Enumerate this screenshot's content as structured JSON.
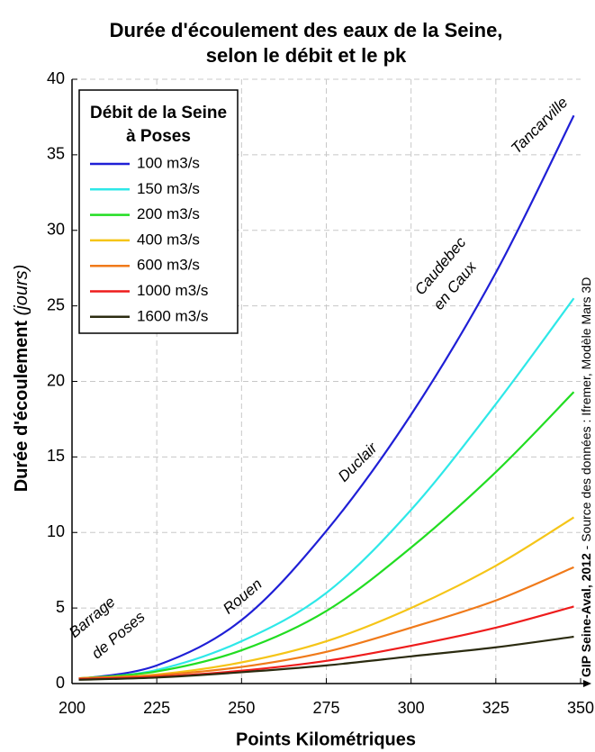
{
  "chart_data": {
    "type": "line",
    "title": [
      "Durée d'écoulement des eaux de la Seine,",
      "selon le débit et le pk"
    ],
    "x_label": "Points Kilométriques",
    "y_label": [
      "Durée d'écoulement ",
      "(jours)"
    ],
    "source": [
      "GIP Seine-Aval, 2012",
      " - Source des données : Ifremer, Modèle Mars 3D"
    ],
    "legend_title": [
      "Débit de la Seine",
      "à Poses"
    ],
    "legend_position": "upper left",
    "grid": true,
    "annotations": [
      "Barrage",
      "de Poses",
      "Rouen",
      "Duclair",
      "Caudebec",
      "en Caux",
      "Tancarville"
    ],
    "x": [
      202,
      225,
      250,
      275,
      300,
      325,
      348
    ],
    "series": [
      {
        "name": "100 m3/s",
        "color": "#1f1fd6",
        "values": [
          0.3,
          1.2,
          4.2,
          10.1,
          17.8,
          27.2,
          37.6
        ]
      },
      {
        "name": "150 m3/s",
        "color": "#2ee8e8",
        "values": [
          0.3,
          0.9,
          2.8,
          6.0,
          11.5,
          18.5,
          25.5
        ]
      },
      {
        "name": "200 m3/s",
        "color": "#22dd22",
        "values": [
          0.35,
          0.8,
          2.2,
          4.8,
          9.0,
          14.0,
          19.3
        ]
      },
      {
        "name": "400 m3/s",
        "color": "#f5c518",
        "values": [
          0.35,
          0.6,
          1.4,
          2.8,
          5.0,
          7.8,
          11.0
        ]
      },
      {
        "name": "600 m3/s",
        "color": "#f07a1a",
        "values": [
          0.35,
          0.55,
          1.1,
          2.1,
          3.7,
          5.5,
          7.7
        ]
      },
      {
        "name": "1000 m3/s",
        "color": "#ee1c1c",
        "values": [
          0.3,
          0.45,
          0.85,
          1.5,
          2.5,
          3.7,
          5.1
        ]
      },
      {
        "name": "1600 m3/s",
        "color": "#2b2b10",
        "values": [
          0.25,
          0.4,
          0.75,
          1.2,
          1.8,
          2.4,
          3.1
        ]
      }
    ],
    "xlim": [
      200,
      350
    ],
    "xticks": [
      200,
      225,
      250,
      275,
      300,
      325,
      350
    ],
    "ylim": [
      0,
      40
    ],
    "yticks": [
      0,
      5,
      10,
      15,
      20,
      25,
      30,
      35,
      40
    ]
  }
}
